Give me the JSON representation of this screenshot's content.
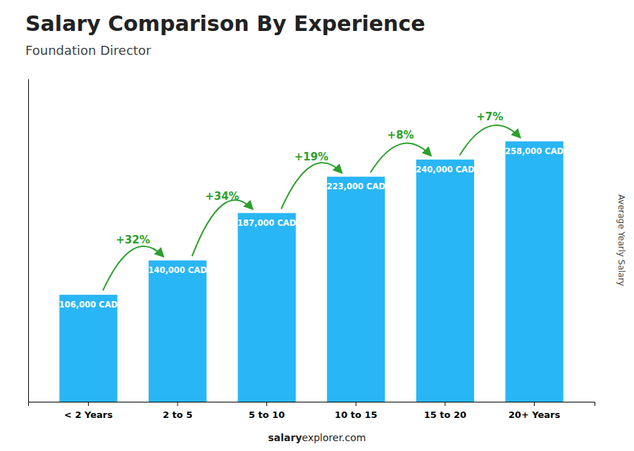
{
  "chart_data": {
    "type": "bar",
    "title": "Salary Comparison By Experience",
    "subtitle": "Foundation Director",
    "categories": [
      "< 2 Years",
      "2 to 5",
      "5 to 10",
      "10 to 15",
      "15 to 20",
      "20+ Years"
    ],
    "values": [
      106000,
      140000,
      187000,
      223000,
      240000,
      258000
    ],
    "value_labels": [
      "106,000 CAD",
      "140,000 CAD",
      "187,000 CAD",
      "223,000 CAD",
      "240,000 CAD",
      "258,000 CAD"
    ],
    "data_labels": true,
    "annotations": [
      "+32%",
      "+34%",
      "+19%",
      "+8%",
      "+7%"
    ],
    "color": "#29B6F6",
    "ylim": [
      0,
      320000
    ],
    "ylabel": "Average Yearly Salary",
    "tick_labels": "x",
    "grid": false,
    "footer": [
      "salary",
      "explorer.com"
    ]
  }
}
